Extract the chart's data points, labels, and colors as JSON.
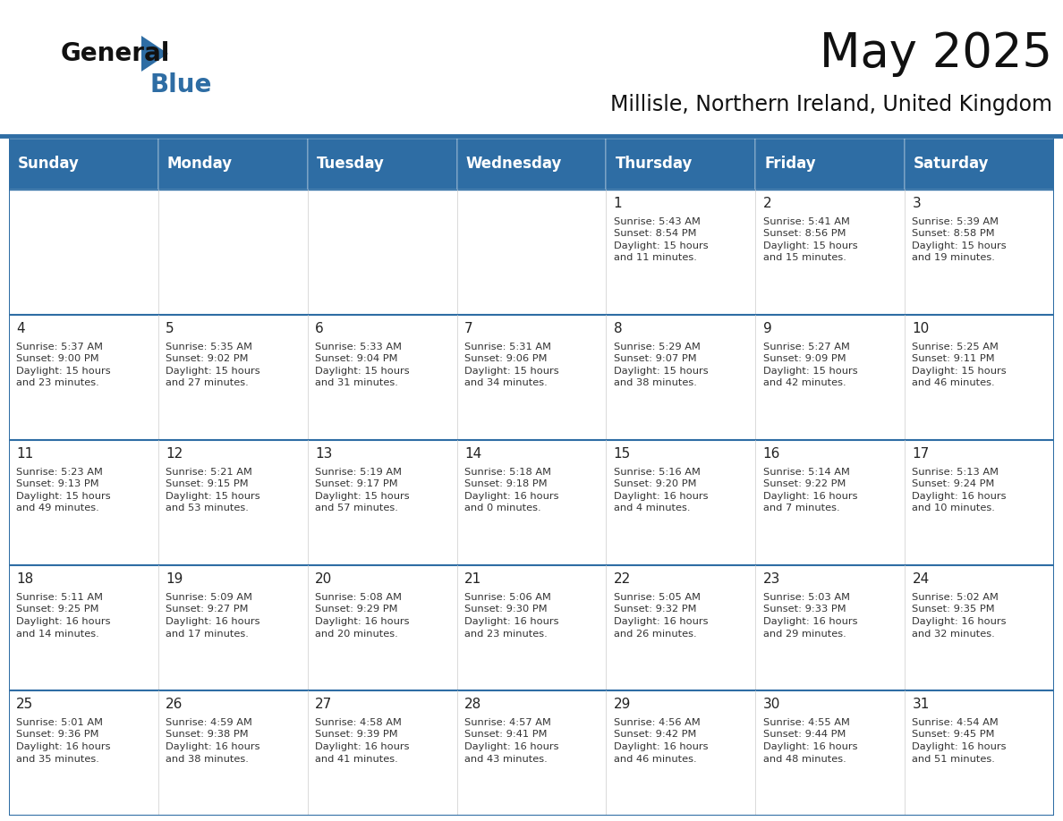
{
  "title": "May 2025",
  "subtitle": "Millisle, Northern Ireland, United Kingdom",
  "header_bg_color": "#2E6DA4",
  "header_text_color": "#FFFFFF",
  "cell_bg_color": "#FFFFFF",
  "week_separator_color": "#2E6DA4",
  "border_color": "#2E6DA4",
  "text_color": "#333333",
  "day_num_color": "#222222",
  "day_headers": [
    "Sunday",
    "Monday",
    "Tuesday",
    "Wednesday",
    "Thursday",
    "Friday",
    "Saturday"
  ],
  "title_fontsize": 38,
  "subtitle_fontsize": 17,
  "header_fontsize": 12,
  "day_num_fontsize": 11,
  "cell_text_fontsize": 8.2,
  "logo_general_fontsize": 20,
  "logo_blue_fontsize": 20,
  "weeks": [
    [
      {
        "day": "",
        "text": ""
      },
      {
        "day": "",
        "text": ""
      },
      {
        "day": "",
        "text": ""
      },
      {
        "day": "",
        "text": ""
      },
      {
        "day": "1",
        "text": "Sunrise: 5:43 AM\nSunset: 8:54 PM\nDaylight: 15 hours\nand 11 minutes."
      },
      {
        "day": "2",
        "text": "Sunrise: 5:41 AM\nSunset: 8:56 PM\nDaylight: 15 hours\nand 15 minutes."
      },
      {
        "day": "3",
        "text": "Sunrise: 5:39 AM\nSunset: 8:58 PM\nDaylight: 15 hours\nand 19 minutes."
      }
    ],
    [
      {
        "day": "4",
        "text": "Sunrise: 5:37 AM\nSunset: 9:00 PM\nDaylight: 15 hours\nand 23 minutes."
      },
      {
        "day": "5",
        "text": "Sunrise: 5:35 AM\nSunset: 9:02 PM\nDaylight: 15 hours\nand 27 minutes."
      },
      {
        "day": "6",
        "text": "Sunrise: 5:33 AM\nSunset: 9:04 PM\nDaylight: 15 hours\nand 31 minutes."
      },
      {
        "day": "7",
        "text": "Sunrise: 5:31 AM\nSunset: 9:06 PM\nDaylight: 15 hours\nand 34 minutes."
      },
      {
        "day": "8",
        "text": "Sunrise: 5:29 AM\nSunset: 9:07 PM\nDaylight: 15 hours\nand 38 minutes."
      },
      {
        "day": "9",
        "text": "Sunrise: 5:27 AM\nSunset: 9:09 PM\nDaylight: 15 hours\nand 42 minutes."
      },
      {
        "day": "10",
        "text": "Sunrise: 5:25 AM\nSunset: 9:11 PM\nDaylight: 15 hours\nand 46 minutes."
      }
    ],
    [
      {
        "day": "11",
        "text": "Sunrise: 5:23 AM\nSunset: 9:13 PM\nDaylight: 15 hours\nand 49 minutes."
      },
      {
        "day": "12",
        "text": "Sunrise: 5:21 AM\nSunset: 9:15 PM\nDaylight: 15 hours\nand 53 minutes."
      },
      {
        "day": "13",
        "text": "Sunrise: 5:19 AM\nSunset: 9:17 PM\nDaylight: 15 hours\nand 57 minutes."
      },
      {
        "day": "14",
        "text": "Sunrise: 5:18 AM\nSunset: 9:18 PM\nDaylight: 16 hours\nand 0 minutes."
      },
      {
        "day": "15",
        "text": "Sunrise: 5:16 AM\nSunset: 9:20 PM\nDaylight: 16 hours\nand 4 minutes."
      },
      {
        "day": "16",
        "text": "Sunrise: 5:14 AM\nSunset: 9:22 PM\nDaylight: 16 hours\nand 7 minutes."
      },
      {
        "day": "17",
        "text": "Sunrise: 5:13 AM\nSunset: 9:24 PM\nDaylight: 16 hours\nand 10 minutes."
      }
    ],
    [
      {
        "day": "18",
        "text": "Sunrise: 5:11 AM\nSunset: 9:25 PM\nDaylight: 16 hours\nand 14 minutes."
      },
      {
        "day": "19",
        "text": "Sunrise: 5:09 AM\nSunset: 9:27 PM\nDaylight: 16 hours\nand 17 minutes."
      },
      {
        "day": "20",
        "text": "Sunrise: 5:08 AM\nSunset: 9:29 PM\nDaylight: 16 hours\nand 20 minutes."
      },
      {
        "day": "21",
        "text": "Sunrise: 5:06 AM\nSunset: 9:30 PM\nDaylight: 16 hours\nand 23 minutes."
      },
      {
        "day": "22",
        "text": "Sunrise: 5:05 AM\nSunset: 9:32 PM\nDaylight: 16 hours\nand 26 minutes."
      },
      {
        "day": "23",
        "text": "Sunrise: 5:03 AM\nSunset: 9:33 PM\nDaylight: 16 hours\nand 29 minutes."
      },
      {
        "day": "24",
        "text": "Sunrise: 5:02 AM\nSunset: 9:35 PM\nDaylight: 16 hours\nand 32 minutes."
      }
    ],
    [
      {
        "day": "25",
        "text": "Sunrise: 5:01 AM\nSunset: 9:36 PM\nDaylight: 16 hours\nand 35 minutes."
      },
      {
        "day": "26",
        "text": "Sunrise: 4:59 AM\nSunset: 9:38 PM\nDaylight: 16 hours\nand 38 minutes."
      },
      {
        "day": "27",
        "text": "Sunrise: 4:58 AM\nSunset: 9:39 PM\nDaylight: 16 hours\nand 41 minutes."
      },
      {
        "day": "28",
        "text": "Sunrise: 4:57 AM\nSunset: 9:41 PM\nDaylight: 16 hours\nand 43 minutes."
      },
      {
        "day": "29",
        "text": "Sunrise: 4:56 AM\nSunset: 9:42 PM\nDaylight: 16 hours\nand 46 minutes."
      },
      {
        "day": "30",
        "text": "Sunrise: 4:55 AM\nSunset: 9:44 PM\nDaylight: 16 hours\nand 48 minutes."
      },
      {
        "day": "31",
        "text": "Sunrise: 4:54 AM\nSunset: 9:45 PM\nDaylight: 16 hours\nand 51 minutes."
      }
    ]
  ]
}
